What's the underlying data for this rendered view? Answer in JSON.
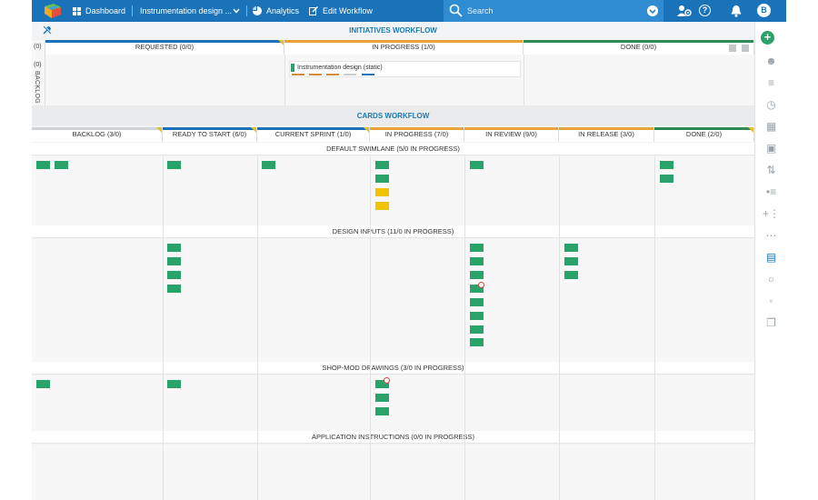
{
  "topbar": {
    "dashboard_label": "Dashboard",
    "board_label": "Instrumentation design ...",
    "analytics_label": "Analytics",
    "edit_workflow_label": "Edit Workflow",
    "search_placeholder": "Search",
    "user_initial": "B",
    "help_glyph": "?"
  },
  "initiatives": {
    "title": "INITIATIVES WORKFLOW",
    "columns": [
      {
        "label": "REQUESTED (0/0)",
        "color": "#1a73b8"
      },
      {
        "label": "IN PROGRESS (1/0)",
        "color": "#e8a33d"
      },
      {
        "label": "DONE (0/0)",
        "color": "#2e8b57"
      }
    ],
    "backlog_label": "BACKLOG",
    "backlog_count": "(0)",
    "left_count": "(0)",
    "card_name": "Instrumentation design (static)"
  },
  "cards": {
    "title": "CARDS WORKFLOW",
    "columns": [
      {
        "label": "BACKLOG (3/0)",
        "color": "#cfd4d8"
      },
      {
        "label": "READY TO START (6/0)",
        "color": "#1a73b8"
      },
      {
        "label": "CURRENT SPRINT (1/0)",
        "color": "#1a73b8"
      },
      {
        "label": "IN PROGRESS (7/0)",
        "color": "#e8a33d"
      },
      {
        "label": "IN REVIEW (9/0)",
        "color": "#e8a33d"
      },
      {
        "label": "IN RELEASE (3/0)",
        "color": "#e8a33d"
      },
      {
        "label": "DONE (2/0)",
        "color": "#2e8b57"
      }
    ],
    "swimlanes": [
      {
        "title": "DEFAULT SWIMLANE (5/0 IN PROGRESS)"
      },
      {
        "title": "DESIGN INPUTS (11/0 IN PROGRESS)"
      },
      {
        "title": "SHOP-MOD DRAWINGS (3/0 IN PROGRESS)"
      },
      {
        "title": "APPLICATION INSTRUCTIONS (0/0 IN PROGRESS)"
      }
    ]
  },
  "colors": {
    "topbar": "#1a73b8",
    "card_green": "#29a36a",
    "card_yellow": "#f2c300",
    "title_blue": "#1d7ab3",
    "add_button": "#29a36a"
  },
  "icons": [
    "logo-icon",
    "dashboard-icon",
    "chevron-down-icon",
    "analytics-icon",
    "edit-icon",
    "search-icon",
    "users-settings-icon",
    "help-icon",
    "bell-icon",
    "pin-icon",
    "plus-icon",
    "filter-icon",
    "history-icon",
    "grid-icon",
    "image-icon",
    "sort-icon",
    "more-icon"
  ]
}
